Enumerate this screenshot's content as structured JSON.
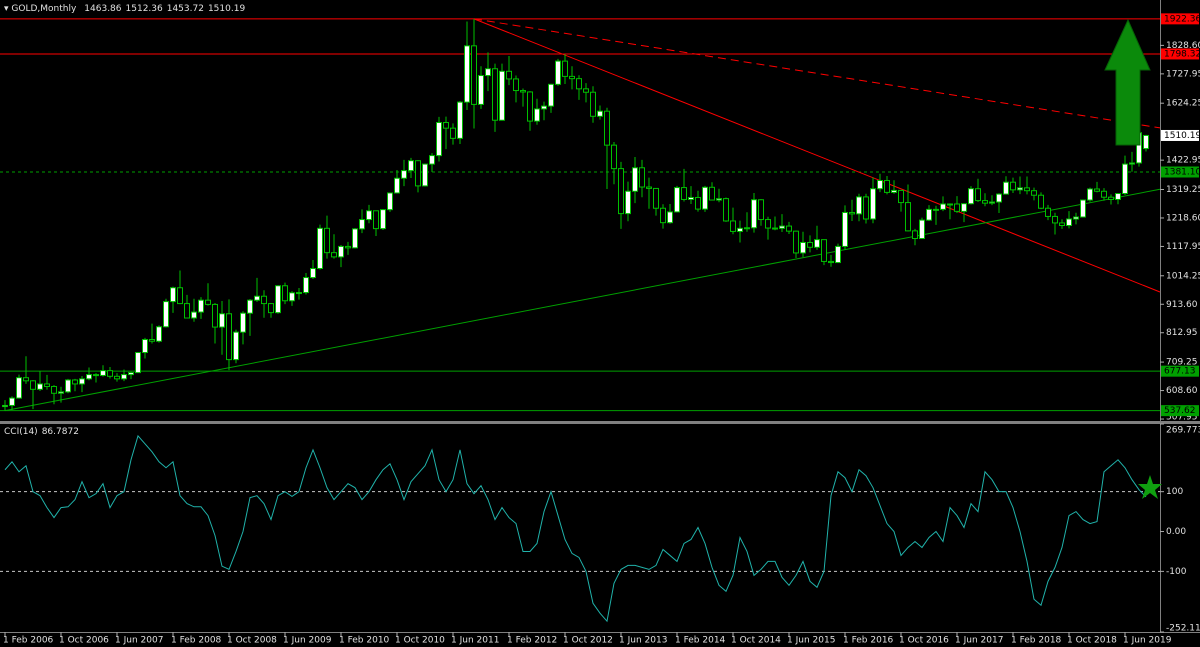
{
  "chart_data": [
    {
      "type": "candlestick",
      "title": "GOLD,Monthly",
      "up_color": "#ffffff",
      "down_color": "#000000",
      "wick_color": "#00c000",
      "categories": [
        "1 Feb 2006",
        null,
        null,
        null,
        null,
        null,
        null,
        null,
        "1 Oct 2006",
        null,
        null,
        null,
        null,
        null,
        null,
        null,
        "1 Jun 2007",
        null,
        null,
        null,
        null,
        null,
        null,
        null,
        "1 Feb 2008",
        null,
        null,
        null,
        null,
        null,
        null,
        null,
        "1 Oct 2008",
        null,
        null,
        null,
        null,
        null,
        null,
        null,
        "1 Jun 2009",
        null,
        null,
        null,
        null,
        null,
        null,
        null,
        "1 Feb 2010",
        null,
        null,
        null,
        null,
        null,
        null,
        null,
        "1 Oct 2010",
        null,
        null,
        null,
        null,
        null,
        null,
        null,
        "1 Jun 2011",
        null,
        null,
        null,
        null,
        null,
        null,
        null,
        "1 Feb 2012",
        null,
        null,
        null,
        null,
        null,
        null,
        null,
        "1 Oct 2012",
        null,
        null,
        null,
        null,
        null,
        null,
        null,
        "1 Jun 2013",
        null,
        null,
        null,
        null,
        null,
        null,
        null,
        "1 Feb 2014",
        null,
        null,
        null,
        null,
        null,
        null,
        null,
        "1 Oct 2014",
        null,
        null,
        null,
        null,
        null,
        null,
        null,
        "1 Jun 2015",
        null,
        null,
        null,
        null,
        null,
        null,
        null,
        "1 Feb 2016",
        null,
        null,
        null,
        null,
        null,
        null,
        null,
        "1 Oct 2016",
        null,
        null,
        null,
        null,
        null,
        null,
        null,
        "1 Jun 2017",
        null,
        null,
        null,
        null,
        null,
        null,
        null,
        "1 Feb 2018",
        null,
        null,
        null,
        null,
        null,
        null,
        null,
        "1 Oct 2018",
        null,
        null,
        null,
        null,
        null,
        null,
        null,
        "1 Jun 2019",
        null,
        null,
        null
      ],
      "open": [
        552,
        556,
        582,
        654,
        643,
        613,
        632,
        623,
        599,
        604,
        646,
        632,
        650,
        665,
        662,
        679,
        659,
        650,
        665,
        672,
        743,
        789,
        783,
        834,
        923,
        972,
        916,
        865,
        886,
        928,
        913,
        833,
        880,
        718,
        815,
        882,
        928,
        942,
        916,
        884,
        979,
        926,
        954,
        955,
        1008,
        1040,
        1182,
        1096,
        1081,
        1118,
        1113,
        1180,
        1213,
        1244,
        1181,
        1248,
        1307,
        1359,
        1386,
        1421,
        1332,
        1409,
        1439,
        1556,
        1536,
        1500,
        1628,
        1827,
        1620,
        1722,
        1746,
        1564,
        1737,
        1710,
        1669,
        1664,
        1561,
        1604,
        1614,
        1691,
        1773,
        1719,
        1711,
        1675,
        1663,
        1578,
        1596,
        1476,
        1393,
        1234,
        1313,
        1396,
        1328,
        1323,
        1253,
        1202,
        1240,
        1326,
        1284,
        1291,
        1250,
        1327,
        1282,
        1287,
        1208,
        1171,
        1182,
        1184,
        1283,
        1213,
        1183,
        1182,
        1190,
        1172,
        1095,
        1132,
        1115,
        1142,
        1065,
        1061,
        1118,
        1238,
        1233,
        1293,
        1215,
        1322,
        1351,
        1309,
        1316,
        1273,
        1173,
        1146,
        1211,
        1249,
        1249,
        1268,
        1268,
        1242,
        1269,
        1322,
        1280,
        1271,
        1275,
        1303,
        1345,
        1318,
        1325,
        1315,
        1299,
        1253,
        1224,
        1201,
        1192,
        1215,
        1222,
        1282,
        1321,
        1313,
        1292,
        1284,
        1305,
        1409,
        1413,
        1463.86
      ],
      "high": [
        575,
        588,
        665,
        730,
        646,
        677,
        664,
        628,
        622,
        650,
        650,
        660,
        690,
        670,
        698,
        692,
        670,
        683,
        675,
        745,
        795,
        845,
        839,
        933,
        976,
        1033,
        947,
        933,
        939,
        988,
        918,
        925,
        931,
        824,
        889,
        932,
        1007,
        963,
        918,
        981,
        990,
        960,
        971,
        1024,
        1070,
        1195,
        1227,
        1161,
        1123,
        1134,
        1183,
        1249,
        1265,
        1245,
        1250,
        1308,
        1388,
        1424,
        1431,
        1423,
        1411,
        1448,
        1576,
        1577,
        1553,
        1632,
        1913,
        1922.36,
        1755,
        1804,
        1764,
        1764,
        1791,
        1722,
        1676,
        1667,
        1640,
        1630,
        1693,
        1781,
        1798,
        1755,
        1723,
        1695,
        1684,
        1616,
        1608,
        1487,
        1417,
        1347,
        1434,
        1424,
        1361,
        1323,
        1267,
        1268,
        1332,
        1392,
        1331,
        1315,
        1332,
        1345,
        1322,
        1291,
        1255,
        1209,
        1239,
        1307,
        1285,
        1223,
        1224,
        1232,
        1205,
        1174,
        1170,
        1157,
        1191,
        1142,
        1088,
        1128,
        1263,
        1283,
        1304,
        1304,
        1362,
        1375,
        1367,
        1352,
        1318,
        1337,
        1180,
        1220,
        1264,
        1262,
        1295,
        1270,
        1296,
        1270,
        1331,
        1357,
        1306,
        1299,
        1306,
        1366,
        1361,
        1365,
        1365,
        1326,
        1309,
        1265,
        1237,
        1214,
        1243,
        1237,
        1284,
        1326,
        1346,
        1324,
        1302,
        1306,
        1439,
        1452,
        1555,
        1512.36
      ],
      "low": [
        538,
        540,
        580,
        632,
        543,
        607,
        612,
        560,
        566,
        599,
        606,
        603,
        645,
        637,
        658,
        651,
        640,
        642,
        649,
        671,
        722,
        775,
        778,
        832,
        883,
        914,
        864,
        852,
        862,
        909,
        775,
        735,
        681,
        705,
        772,
        802,
        922,
        866,
        866,
        880,
        914,
        908,
        930,
        948,
        1003,
        1036,
        1075,
        1075,
        1045,
        1088,
        1111,
        1165,
        1200,
        1155,
        1176,
        1240,
        1305,
        1331,
        1360,
        1309,
        1330,
        1381,
        1418,
        1462,
        1478,
        1480,
        1600,
        1535,
        1604,
        1667,
        1523,
        1563,
        1688,
        1627,
        1612,
        1527,
        1548,
        1564,
        1590,
        1686,
        1692,
        1673,
        1636,
        1627,
        1555,
        1566,
        1321,
        1338,
        1180,
        1207,
        1271,
        1292,
        1251,
        1227,
        1181,
        1198,
        1239,
        1277,
        1268,
        1241,
        1240,
        1281,
        1274,
        1205,
        1161,
        1132,
        1170,
        1167,
        1191,
        1142,
        1175,
        1169,
        1162,
        1077,
        1080,
        1097,
        1106,
        1052,
        1046,
        1062,
        1107,
        1208,
        1207,
        1199,
        1200,
        1310,
        1302,
        1304,
        1241,
        1171,
        1122,
        1146,
        1208,
        1194,
        1243,
        1214,
        1236,
        1204,
        1266,
        1275,
        1260,
        1264,
        1236,
        1302,
        1307,
        1303,
        1302,
        1281,
        1250,
        1211,
        1160,
        1180,
        1182,
        1196,
        1221,
        1276,
        1309,
        1280,
        1266,
        1267,
        1300,
        1382,
        1400,
        1453.72
      ],
      "close": [
        556,
        582,
        654,
        643,
        613,
        632,
        623,
        599,
        604,
        646,
        632,
        650,
        665,
        662,
        679,
        659,
        650,
        665,
        672,
        743,
        789,
        783,
        834,
        923,
        972,
        916,
        865,
        886,
        928,
        913,
        833,
        880,
        718,
        815,
        882,
        928,
        942,
        916,
        884,
        979,
        926,
        954,
        955,
        1008,
        1040,
        1182,
        1096,
        1081,
        1118,
        1113,
        1180,
        1213,
        1244,
        1181,
        1248,
        1307,
        1359,
        1386,
        1421,
        1332,
        1409,
        1439,
        1556,
        1536,
        1500,
        1628,
        1827,
        1620,
        1722,
        1746,
        1564,
        1737,
        1710,
        1669,
        1664,
        1561,
        1604,
        1614,
        1691,
        1773,
        1719,
        1711,
        1675,
        1663,
        1578,
        1596,
        1476,
        1393,
        1234,
        1313,
        1396,
        1328,
        1323,
        1253,
        1202,
        1240,
        1326,
        1284,
        1291,
        1250,
        1327,
        1282,
        1287,
        1208,
        1171,
        1182,
        1184,
        1283,
        1213,
        1183,
        1182,
        1190,
        1172,
        1095,
        1132,
        1115,
        1142,
        1065,
        1061,
        1118,
        1238,
        1233,
        1293,
        1215,
        1322,
        1351,
        1309,
        1316,
        1273,
        1173,
        1146,
        1211,
        1249,
        1249,
        1268,
        1268,
        1242,
        1269,
        1322,
        1280,
        1271,
        1275,
        1303,
        1345,
        1318,
        1325,
        1315,
        1299,
        1253,
        1224,
        1201,
        1192,
        1215,
        1222,
        1282,
        1321,
        1313,
        1292,
        1284,
        1305,
        1409,
        1413,
        1520,
        1510.19
      ],
      "ylim": [
        501,
        1989
      ],
      "yticks": [
        {
          "value": 1828.6,
          "label": "1828.60"
        },
        1727.95,
        1624.25,
        1422.95,
        1319.25,
        {
          "value": 1218.6,
          "label": "1218.60"
        },
        1117.95,
        1014.25,
        {
          "value": 913.6,
          "label": "913.60"
        },
        812.95,
        709.25,
        {
          "value": 608.6,
          "label": "608.60"
        },
        507.95
      ],
      "levels": [
        {
          "value": 1922.36,
          "color": "#ff0000",
          "style": "solid"
        },
        {
          "value": 1798.32,
          "color": "#ff0000",
          "style": "solid"
        },
        {
          "value": 1381.1,
          "label": "1381.10",
          "color": "#00a000",
          "style": "dashed"
        },
        {
          "value": 677.13,
          "color": "#00a000",
          "style": "solid"
        },
        {
          "value": 537.62,
          "color": "#00a000",
          "style": "solid"
        }
      ],
      "trendlines": [
        {
          "color": "#ff0000",
          "style": "solid",
          "from": [
            67,
            1922.36
          ],
          "to": [
            165,
            957
          ]
        },
        {
          "color": "#ff0000",
          "style": "dashed",
          "from": [
            67,
            1922.36
          ],
          "to": [
            165,
            1537
          ]
        },
        {
          "color": "#00a000",
          "style": "solid",
          "from": [
            0,
            537.62
          ],
          "to": [
            165,
            1320
          ]
        }
      ]
    },
    {
      "type": "line",
      "series": [
        {
          "name": "CCI(14)",
          "color": "#20b2aa",
          "values": [
            155,
            175,
            150,
            165,
            100,
            90,
            60,
            35,
            60,
            62,
            80,
            125,
            85,
            95,
            120,
            60,
            90,
            100,
            180,
            240,
            220,
            200,
            175,
            160,
            175,
            90,
            70,
            62,
            62,
            40,
            -10,
            -87,
            -95,
            -50,
            0,
            85,
            90,
            70,
            30,
            90,
            100,
            88,
            100,
            160,
            205,
            160,
            110,
            80,
            100,
            120,
            110,
            80,
            100,
            130,
            155,
            170,
            130,
            80,
            125,
            145,
            165,
            205,
            130,
            100,
            130,
            205,
            120,
            95,
            115,
            80,
            30,
            60,
            35,
            20,
            -50,
            -50,
            -30,
            50,
            100,
            40,
            -20,
            -55,
            -65,
            -100,
            -180,
            -205,
            -225,
            -130,
            -95,
            -85,
            -85,
            -90,
            -95,
            -85,
            -45,
            -60,
            -75,
            -30,
            -20,
            10,
            -30,
            -90,
            -135,
            -150,
            -110,
            -15,
            -50,
            -110,
            -95,
            -75,
            -75,
            -115,
            -135,
            -110,
            -75,
            -125,
            -140,
            -100,
            90,
            150,
            135,
            100,
            155,
            140,
            110,
            65,
            20,
            0,
            -60,
            -40,
            -25,
            -40,
            -15,
            0,
            -25,
            60,
            40,
            10,
            70,
            50,
            150,
            130,
            100,
            100,
            60,
            0,
            -75,
            -170,
            -185,
            -125,
            -90,
            -40,
            40,
            50,
            30,
            20,
            25,
            150,
            165,
            180,
            160,
            130,
            105,
            86.7872
          ]
        }
      ],
      "ylim": [
        -252.1117,
        269.773
      ],
      "yticks": [
        269.773,
        100,
        {
          "value": 0,
          "label": "0.00"
        },
        -100,
        -252.1117
      ],
      "levels": [
        100,
        -100
      ]
    }
  ]
}
